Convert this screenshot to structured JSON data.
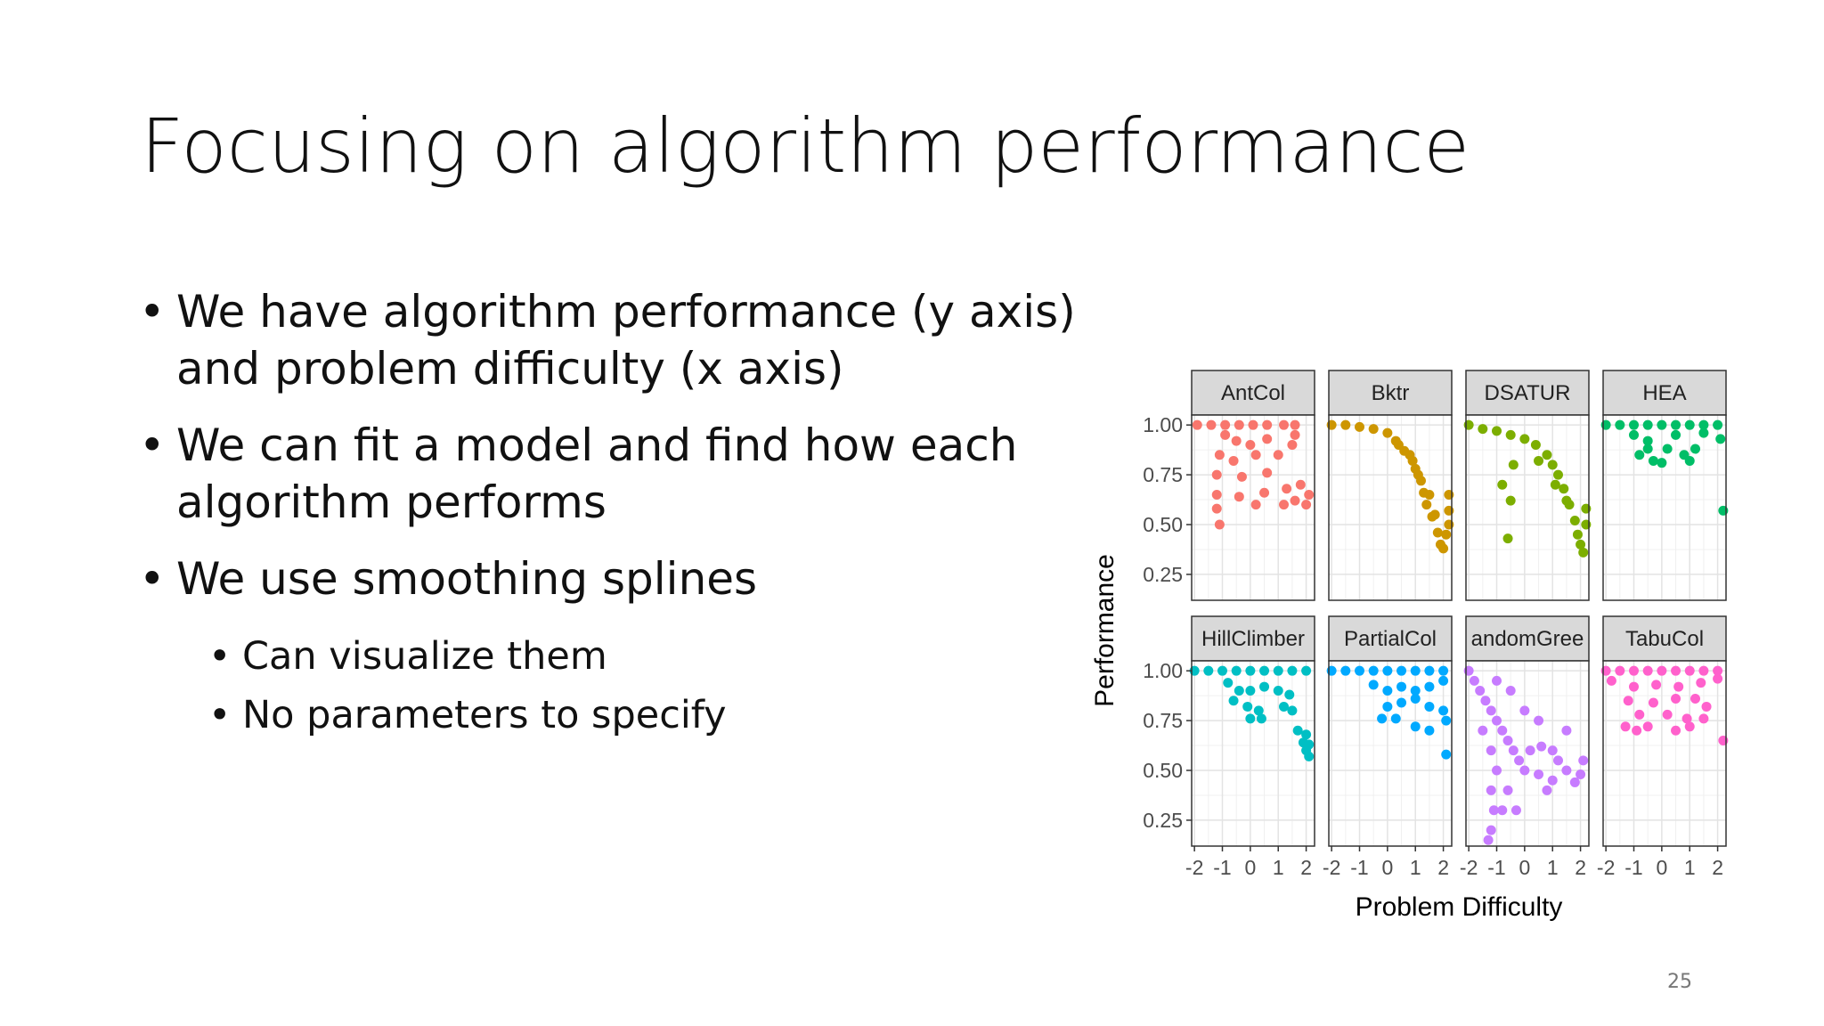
{
  "slide": {
    "title": "Focusing on algorithm performance",
    "bullets": [
      "We have algorithm performance (y axis) and problem difficulty (x axis)",
      "We can fit a model and find how each algorithm performs",
      "We use smoothing splines"
    ],
    "sub_bullets": [
      "Can visualize them",
      "No parameters to specify"
    ],
    "page_number": "25"
  },
  "chart_data": {
    "type": "scatter",
    "xlabel": "Problem Difficulty",
    "ylabel": "Performance",
    "xlim": [
      -2.1,
      2.3
    ],
    "ylim": [
      0.12,
      1.05
    ],
    "x_ticks": [
      -2,
      -1,
      0,
      1,
      2
    ],
    "y_ticks": [
      0.25,
      0.5,
      0.75,
      1.0
    ],
    "y_tick_labels": [
      "0.25",
      "0.50",
      "0.75",
      "1.00"
    ],
    "x_tick_labels": [
      "-2",
      "-1",
      "0",
      "1",
      "2"
    ],
    "grid": true,
    "facet_layout": "4x2",
    "series": [
      {
        "name": "AntCol",
        "color": "#F8766D",
        "points": [
          [
            -1.9,
            1.0
          ],
          [
            -1.4,
            1.0
          ],
          [
            -0.9,
            1.0
          ],
          [
            -0.4,
            1.0
          ],
          [
            0.1,
            1.0
          ],
          [
            0.6,
            1.0
          ],
          [
            1.2,
            1.0
          ],
          [
            1.6,
            1.0
          ],
          [
            -0.9,
            0.95
          ],
          [
            -0.5,
            0.92
          ],
          [
            0.0,
            0.9
          ],
          [
            0.6,
            0.93
          ],
          [
            1.6,
            0.95
          ],
          [
            -1.1,
            0.85
          ],
          [
            -0.6,
            0.82
          ],
          [
            0.2,
            0.85
          ],
          [
            1.0,
            0.85
          ],
          [
            1.5,
            0.9
          ],
          [
            -1.2,
            0.75
          ],
          [
            -0.3,
            0.74
          ],
          [
            0.6,
            0.76
          ],
          [
            -1.2,
            0.65
          ],
          [
            -0.4,
            0.64
          ],
          [
            0.5,
            0.66
          ],
          [
            1.3,
            0.68
          ],
          [
            1.8,
            0.7
          ],
          [
            -1.2,
            0.58
          ],
          [
            0.2,
            0.6
          ],
          [
            1.2,
            0.6
          ],
          [
            1.6,
            0.62
          ],
          [
            2.0,
            0.6
          ],
          [
            2.1,
            0.65
          ],
          [
            -1.1,
            0.5
          ]
        ]
      },
      {
        "name": "Bktr",
        "color": "#CD9600",
        "points": [
          [
            -2.0,
            1.0
          ],
          [
            -1.5,
            1.0
          ],
          [
            -1.0,
            0.99
          ],
          [
            -0.5,
            0.98
          ],
          [
            0.0,
            0.96
          ],
          [
            0.3,
            0.92
          ],
          [
            0.6,
            0.87
          ],
          [
            0.9,
            0.82
          ],
          [
            1.0,
            0.78
          ],
          [
            1.2,
            0.72
          ],
          [
            1.3,
            0.66
          ],
          [
            1.4,
            0.6
          ],
          [
            1.6,
            0.54
          ],
          [
            1.8,
            0.46
          ],
          [
            1.9,
            0.4
          ],
          [
            2.0,
            0.38
          ],
          [
            2.1,
            0.45
          ],
          [
            2.2,
            0.5
          ],
          [
            2.2,
            0.57
          ],
          [
            2.2,
            0.65
          ],
          [
            0.4,
            0.9
          ],
          [
            0.8,
            0.85
          ],
          [
            1.1,
            0.75
          ],
          [
            1.5,
            0.65
          ],
          [
            1.7,
            0.55
          ]
        ]
      },
      {
        "name": "DSATUR",
        "color": "#7CAE00",
        "points": [
          [
            -2.0,
            1.0
          ],
          [
            -1.5,
            0.98
          ],
          [
            -1.0,
            0.97
          ],
          [
            -0.5,
            0.95
          ],
          [
            0.0,
            0.93
          ],
          [
            0.4,
            0.9
          ],
          [
            0.8,
            0.85
          ],
          [
            1.0,
            0.8
          ],
          [
            1.2,
            0.75
          ],
          [
            1.4,
            0.68
          ],
          [
            1.6,
            0.6
          ],
          [
            1.8,
            0.52
          ],
          [
            1.9,
            0.45
          ],
          [
            2.0,
            0.4
          ],
          [
            2.1,
            0.36
          ],
          [
            2.2,
            0.5
          ],
          [
            2.2,
            0.58
          ],
          [
            -0.4,
            0.8
          ],
          [
            -0.8,
            0.7
          ],
          [
            -0.5,
            0.62
          ],
          [
            -0.6,
            0.43
          ],
          [
            0.5,
            0.82
          ],
          [
            1.1,
            0.7
          ],
          [
            1.5,
            0.62
          ]
        ]
      },
      {
        "name": "HEA",
        "color": "#00BE67",
        "points": [
          [
            -2.0,
            1.0
          ],
          [
            -1.5,
            1.0
          ],
          [
            -1.0,
            1.0
          ],
          [
            -0.5,
            1.0
          ],
          [
            0.0,
            1.0
          ],
          [
            0.5,
            1.0
          ],
          [
            1.0,
            1.0
          ],
          [
            1.5,
            1.0
          ],
          [
            2.0,
            1.0
          ],
          [
            -1.0,
            0.95
          ],
          [
            -0.5,
            0.92
          ],
          [
            0.5,
            0.95
          ],
          [
            1.5,
            0.96
          ],
          [
            2.1,
            0.93
          ],
          [
            -0.5,
            0.88
          ],
          [
            0.2,
            0.88
          ],
          [
            1.2,
            0.88
          ],
          [
            -0.3,
            0.82
          ],
          [
            0.0,
            0.81
          ],
          [
            0.8,
            0.85
          ],
          [
            1.0,
            0.82
          ],
          [
            -0.8,
            0.85
          ],
          [
            2.2,
            0.57
          ]
        ]
      },
      {
        "name": "HillClimber",
        "color": "#00BFC4",
        "points": [
          [
            -2.0,
            1.0
          ],
          [
            -1.5,
            1.0
          ],
          [
            -1.0,
            1.0
          ],
          [
            -0.5,
            1.0
          ],
          [
            0.0,
            1.0
          ],
          [
            0.5,
            1.0
          ],
          [
            1.0,
            1.0
          ],
          [
            1.5,
            1.0
          ],
          [
            2.0,
            1.0
          ],
          [
            -0.8,
            0.94
          ],
          [
            -0.4,
            0.9
          ],
          [
            0.0,
            0.9
          ],
          [
            0.5,
            0.92
          ],
          [
            1.0,
            0.9
          ],
          [
            1.4,
            0.88
          ],
          [
            -0.6,
            0.85
          ],
          [
            -0.1,
            0.82
          ],
          [
            0.3,
            0.8
          ],
          [
            1.2,
            0.82
          ],
          [
            1.5,
            0.8
          ],
          [
            0.0,
            0.76
          ],
          [
            0.4,
            0.76
          ],
          [
            1.7,
            0.7
          ],
          [
            1.9,
            0.64
          ],
          [
            2.0,
            0.6
          ],
          [
            2.1,
            0.57
          ],
          [
            2.1,
            0.63
          ],
          [
            2.0,
            0.68
          ]
        ]
      },
      {
        "name": "PartialCol",
        "color": "#00A9FF",
        "points": [
          [
            -2.0,
            1.0
          ],
          [
            -1.5,
            1.0
          ],
          [
            -1.0,
            1.0
          ],
          [
            -0.5,
            1.0
          ],
          [
            0.0,
            1.0
          ],
          [
            0.5,
            1.0
          ],
          [
            1.0,
            1.0
          ],
          [
            1.5,
            1.0
          ],
          [
            2.0,
            1.0
          ],
          [
            -0.5,
            0.93
          ],
          [
            0.0,
            0.9
          ],
          [
            0.5,
            0.92
          ],
          [
            1.0,
            0.9
          ],
          [
            1.5,
            0.92
          ],
          [
            2.0,
            0.95
          ],
          [
            0.0,
            0.82
          ],
          [
            0.5,
            0.84
          ],
          [
            1.0,
            0.86
          ],
          [
            1.5,
            0.82
          ],
          [
            -0.2,
            0.76
          ],
          [
            0.3,
            0.76
          ],
          [
            1.0,
            0.72
          ],
          [
            1.5,
            0.7
          ],
          [
            2.0,
            0.8
          ],
          [
            2.1,
            0.75
          ],
          [
            2.1,
            0.58
          ]
        ]
      },
      {
        "name": "RandomGreedy",
        "color": "#C77CFF",
        "points": [
          [
            -2.0,
            1.0
          ],
          [
            -1.8,
            0.95
          ],
          [
            -1.6,
            0.9
          ],
          [
            -1.4,
            0.85
          ],
          [
            -1.2,
            0.8
          ],
          [
            -1.0,
            0.75
          ],
          [
            -0.8,
            0.7
          ],
          [
            -0.6,
            0.65
          ],
          [
            -0.4,
            0.6
          ],
          [
            -0.2,
            0.55
          ],
          [
            0.0,
            0.5
          ],
          [
            0.5,
            0.48
          ],
          [
            1.0,
            0.45
          ],
          [
            1.5,
            0.5
          ],
          [
            1.8,
            0.44
          ],
          [
            2.0,
            0.48
          ],
          [
            -1.5,
            0.7
          ],
          [
            -1.2,
            0.6
          ],
          [
            -1.0,
            0.5
          ],
          [
            -1.2,
            0.4
          ],
          [
            -1.1,
            0.3
          ],
          [
            -1.2,
            0.2
          ],
          [
            -1.3,
            0.15
          ],
          [
            -0.8,
            0.3
          ],
          [
            -0.6,
            0.4
          ],
          [
            -0.3,
            0.3
          ],
          [
            0.2,
            0.6
          ],
          [
            0.6,
            0.62
          ],
          [
            1.0,
            0.6
          ],
          [
            0.5,
            0.75
          ],
          [
            0.0,
            0.8
          ],
          [
            -0.5,
            0.9
          ],
          [
            -1.0,
            0.95
          ],
          [
            1.5,
            0.7
          ],
          [
            2.1,
            0.55
          ],
          [
            1.2,
            0.55
          ],
          [
            0.8,
            0.4
          ]
        ]
      },
      {
        "name": "TabuCol",
        "color": "#FF61CC",
        "points": [
          [
            -2.0,
            1.0
          ],
          [
            -1.5,
            1.0
          ],
          [
            -1.0,
            1.0
          ],
          [
            -0.5,
            1.0
          ],
          [
            0.0,
            1.0
          ],
          [
            0.5,
            1.0
          ],
          [
            1.0,
            1.0
          ],
          [
            1.5,
            1.0
          ],
          [
            2.0,
            1.0
          ],
          [
            -1.8,
            0.95
          ],
          [
            -1.0,
            0.92
          ],
          [
            -0.2,
            0.93
          ],
          [
            0.6,
            0.92
          ],
          [
            1.4,
            0.94
          ],
          [
            2.0,
            0.96
          ],
          [
            -1.2,
            0.85
          ],
          [
            -0.3,
            0.84
          ],
          [
            0.5,
            0.86
          ],
          [
            1.2,
            0.86
          ],
          [
            1.6,
            0.82
          ],
          [
            -0.8,
            0.78
          ],
          [
            0.2,
            0.78
          ],
          [
            0.9,
            0.76
          ],
          [
            1.5,
            0.76
          ],
          [
            -1.3,
            0.72
          ],
          [
            -0.9,
            0.7
          ],
          [
            -0.5,
            0.72
          ],
          [
            0.5,
            0.7
          ],
          [
            1.0,
            0.72
          ],
          [
            2.2,
            0.65
          ]
        ]
      }
    ],
    "facet_labels": [
      "AntCol",
      "Bktr",
      "DSATUR",
      "HEA",
      "HillClimber",
      "PartialCol",
      "andomGree",
      "TabuCol"
    ]
  }
}
